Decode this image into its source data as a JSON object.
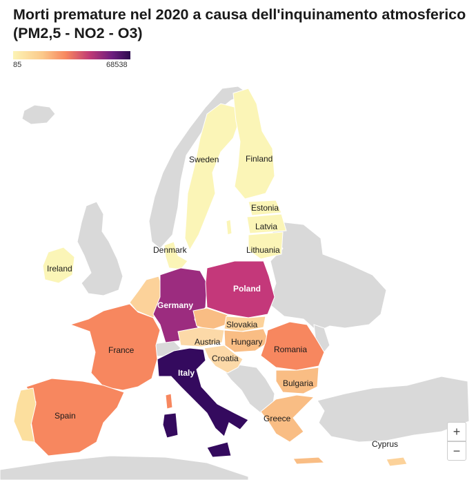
{
  "title": "Morti premature nel 2020 a causa dell'inquinamento atmosferico (PM2,5 - NO2 - O3)",
  "legend": {
    "min": "85",
    "max": "68538",
    "colors": [
      "#fcf3b5",
      "#fbc98a",
      "#f7875f",
      "#c13b75",
      "#6b1d7e",
      "#2d0b4e"
    ]
  },
  "zoom": {
    "in": "+",
    "out": "−"
  },
  "colors": {
    "no_data": "#d9d9d9",
    "low": "#fbf5b7",
    "low_mid": "#fcd29a",
    "mid": "#f9bd84",
    "mid_high": "#f7875f",
    "high": "#c4387a",
    "very_high": "#9c2c7f",
    "max": "#340a5e"
  },
  "labels": {
    "sweden": "Sweden",
    "finland": "Finland",
    "estonia": "Estonia",
    "latvia": "Latvia",
    "lithuania": "Lithuania",
    "denmark": "Denmark",
    "ireland": "Ireland",
    "poland": "Poland",
    "germany": "Germany",
    "slovakia": "Slovakia",
    "hungary": "Hungary",
    "austria": "Austria",
    "france": "France",
    "croatia": "Croatia",
    "romania": "Romania",
    "italy": "Italy",
    "bulgaria": "Bulgaria",
    "spain": "Spain",
    "greece": "Greece",
    "cyprus": "Cyprus"
  }
}
